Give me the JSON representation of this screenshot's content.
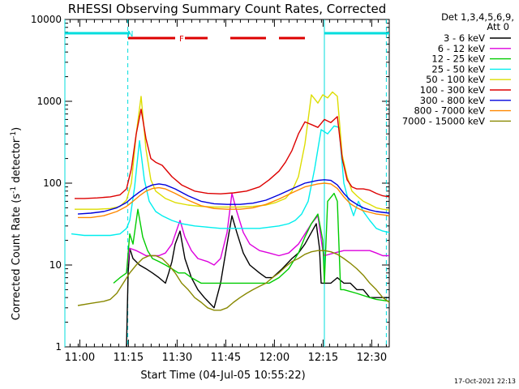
{
  "chart_data": {
    "type": "line",
    "title": "RHESSI Observing Summary Count Rates, Corrected",
    "xlabel": "Start Time (04-Jul-05 10:55:22)",
    "ylabel_main": "Corrected Count Rate (s",
    "ylabel_exp1": "-1",
    "ylabel_mid": " detector",
    "ylabel_exp2": "-1",
    "ylabel_close": ")",
    "footer": "17-Oct-2021 22:13",
    "x_unit": "minutes after 10:55:22",
    "xlim": [
      0,
      100
    ],
    "ylim": [
      1,
      10000
    ],
    "yscale": "log",
    "x_ticks": [
      {
        "label": "11:00",
        "value": 4.6
      },
      {
        "label": "11:15",
        "value": 19.6
      },
      {
        "label": "11:30",
        "value": 34.6
      },
      {
        "label": "11:45",
        "value": 49.6
      },
      {
        "label": "12:00",
        "value": 64.6
      },
      {
        "label": "12:15",
        "value": 79.6
      },
      {
        "label": "12:30",
        "value": 94.6
      }
    ],
    "y_ticks": [
      {
        "label": "1",
        "value": 1
      },
      {
        "label": "10",
        "value": 10
      },
      {
        "label": "100",
        "value": 100
      },
      {
        "label": "1000",
        "value": 1000
      },
      {
        "label": "10000",
        "value": 10000
      }
    ],
    "legend_header": [
      "Det 1,3,4,5,6,9,",
      "Att 0"
    ],
    "legend_placement": "right",
    "series": [
      {
        "name": "3 - 6 keV",
        "color": "#000000",
        "x": [
          0,
          19,
          19.5,
          20,
          21,
          23,
          25,
          27,
          29,
          31,
          32,
          33,
          34,
          35.5,
          37,
          39,
          41,
          43,
          46,
          48,
          50,
          51.5,
          53,
          55,
          57,
          60,
          62,
          64,
          67,
          70,
          72,
          74,
          76,
          77.5,
          78.5,
          79,
          80,
          82,
          84,
          86,
          88,
          90,
          92,
          94,
          96,
          98,
          100
        ],
        "y": [
          null,
          1,
          8,
          16,
          12,
          10,
          9,
          8,
          7,
          6,
          8,
          11,
          18,
          26,
          12,
          7,
          5,
          4,
          3,
          6,
          18,
          40,
          25,
          14,
          10,
          8,
          7,
          7,
          9,
          12,
          14,
          18,
          25,
          32,
          16,
          6,
          6,
          6,
          7,
          6,
          6,
          5,
          5,
          4,
          4,
          4,
          4
        ]
      },
      {
        "name": "6 - 12 keV",
        "color": "#dd00dd",
        "x": [
          0,
          19,
          20,
          22,
          23.5,
          25,
          27,
          29,
          31,
          33,
          35.5,
          37,
          39,
          41,
          44,
          46,
          48,
          50,
          51.5,
          53,
          55,
          57,
          60,
          63,
          66,
          69,
          72,
          74,
          76,
          78,
          79.5,
          80,
          83,
          86,
          89,
          92,
          94,
          96,
          98,
          100
        ],
        "y": [
          null,
          8,
          16,
          15,
          14,
          13,
          13,
          13,
          14,
          18,
          35,
          22,
          15,
          12,
          11,
          10,
          12,
          25,
          75,
          45,
          25,
          18,
          15,
          14,
          13,
          14,
          18,
          24,
          32,
          40,
          15,
          13,
          14,
          15,
          15,
          15,
          15,
          14,
          13,
          13
        ]
      },
      {
        "name": "12 - 25 keV",
        "color": "#00cc00",
        "x": [
          0,
          15,
          17,
          19,
          20,
          21,
          22.5,
          24,
          25.5,
          27,
          29,
          31,
          33,
          35,
          37,
          39,
          42,
          45,
          48,
          50,
          52,
          54,
          57,
          60,
          63,
          66,
          69,
          72,
          74,
          76,
          78,
          79.5,
          80,
          81,
          83,
          84,
          85,
          86,
          90,
          94,
          96,
          98,
          100
        ],
        "y": [
          null,
          6,
          7,
          8,
          24,
          18,
          48,
          22,
          15,
          12,
          11,
          10,
          9,
          8,
          8,
          7,
          6,
          6,
          6,
          6,
          6,
          6,
          6,
          6,
          6,
          7,
          9,
          14,
          22,
          32,
          42,
          20,
          6,
          60,
          75,
          60,
          5,
          5,
          4.5,
          4,
          3.8,
          3.7,
          3.6
        ]
      },
      {
        "name": "25 - 50 keV",
        "color": "#00eeee",
        "x": [
          0,
          2,
          6,
          10,
          14,
          17,
          19,
          20,
          21.5,
          23,
          24.5,
          26,
          28,
          30,
          33,
          36,
          40,
          44,
          48,
          52,
          56,
          60,
          63,
          66,
          69,
          71,
          73,
          75,
          77,
          79,
          81,
          83,
          84.5,
          86,
          87.5,
          89,
          90.5,
          92,
          94,
          96,
          98,
          100
        ],
        "y": [
          null,
          24,
          23,
          23,
          23,
          24,
          28,
          35,
          90,
          330,
          110,
          60,
          45,
          40,
          35,
          32,
          30,
          29,
          28,
          28,
          28,
          28,
          29,
          30,
          32,
          35,
          42,
          60,
          150,
          450,
          400,
          500,
          480,
          100,
          60,
          40,
          60,
          45,
          35,
          28,
          26,
          25
        ]
      },
      {
        "name": "50 - 100 keV",
        "color": "#dddd00",
        "x": [
          0,
          3,
          6,
          10,
          14,
          17,
          19,
          20.5,
          22,
          23.5,
          25,
          26.5,
          28,
          31,
          34,
          38,
          42,
          46,
          50,
          54,
          58,
          62,
          65,
          68,
          70,
          72,
          74,
          76,
          78,
          79.5,
          81,
          82.5,
          84,
          85.5,
          87,
          88.5,
          90,
          92,
          94,
          96,
          98,
          100
        ],
        "y": [
          null,
          48,
          48,
          48,
          49,
          52,
          62,
          100,
          400,
          1150,
          260,
          110,
          80,
          65,
          58,
          54,
          52,
          51,
          51,
          51,
          52,
          54,
          58,
          65,
          80,
          120,
          300,
          1200,
          950,
          1200,
          1100,
          1300,
          1150,
          220,
          120,
          80,
          70,
          60,
          55,
          50,
          48,
          47
        ]
      },
      {
        "name": "100 - 300 keV",
        "color": "#dd0000",
        "x": [
          0,
          3,
          6,
          10,
          14,
          17,
          19,
          20.5,
          22,
          23.5,
          25,
          26.5,
          28,
          30,
          33,
          36,
          40,
          44,
          48,
          52,
          56,
          60,
          63,
          66,
          68,
          70,
          72,
          74,
          76,
          78,
          80,
          82,
          84,
          85.5,
          87,
          88.5,
          90,
          92,
          94,
          96,
          98,
          100
        ],
        "y": [
          null,
          65,
          65,
          66,
          68,
          72,
          85,
          150,
          400,
          800,
          350,
          200,
          180,
          165,
          120,
          95,
          80,
          75,
          74,
          76,
          80,
          90,
          110,
          140,
          180,
          250,
          400,
          560,
          520,
          480,
          600,
          550,
          650,
          200,
          110,
          90,
          85,
          85,
          82,
          75,
          70,
          68
        ]
      },
      {
        "name": "300 - 800 keV",
        "color": "#0000dd",
        "x": [
          0,
          4,
          8,
          12,
          16,
          19,
          21,
          23,
          25,
          27,
          29,
          31,
          34,
          38,
          42,
          46,
          50,
          54,
          58,
          62,
          66,
          70,
          74,
          78,
          80,
          82,
          84,
          86,
          88,
          90,
          92,
          94,
          96,
          98,
          100
        ],
        "y": [
          null,
          42,
          43,
          45,
          50,
          58,
          68,
          78,
          88,
          95,
          98,
          95,
          85,
          70,
          60,
          56,
          55,
          55,
          57,
          62,
          72,
          85,
          100,
          108,
          110,
          108,
          95,
          75,
          62,
          55,
          50,
          47,
          45,
          44,
          43
        ]
      },
      {
        "name": "800 - 7000 keV",
        "color": "#ff8800",
        "x": [
          0,
          4,
          8,
          12,
          16,
          19,
          21,
          23,
          25,
          27,
          29,
          31,
          34,
          38,
          42,
          46,
          50,
          54,
          58,
          62,
          66,
          70,
          74,
          78,
          80,
          82,
          84,
          86,
          88,
          90,
          92,
          94,
          96,
          98,
          100
        ],
        "y": [
          null,
          38,
          38,
          40,
          45,
          52,
          60,
          70,
          80,
          86,
          88,
          85,
          75,
          62,
          53,
          49,
          48,
          48,
          50,
          55,
          64,
          76,
          90,
          98,
          100,
          98,
          86,
          68,
          56,
          50,
          46,
          44,
          42,
          41,
          40
        ]
      },
      {
        "name": "7000 - 15000 keV",
        "color": "#888800",
        "x": [
          0,
          4,
          8,
          12,
          14,
          16,
          18,
          20,
          22,
          24,
          26,
          28,
          30,
          32,
          34,
          36,
          38,
          40,
          42,
          44,
          46,
          48,
          50,
          52,
          54,
          56,
          58,
          60,
          62,
          64,
          66,
          68,
          70,
          72,
          74,
          76,
          78,
          80,
          82,
          84,
          86,
          88,
          90,
          92,
          94,
          96,
          98,
          100
        ],
        "y": [
          null,
          3.2,
          3.4,
          3.6,
          3.8,
          4.5,
          6,
          8,
          10,
          12,
          13,
          13,
          12,
          10,
          8,
          6,
          5,
          4,
          3.5,
          3,
          2.8,
          2.8,
          3,
          3.5,
          4,
          4.5,
          5,
          5.5,
          6,
          7,
          8,
          9.5,
          11,
          12,
          13.5,
          14.5,
          15,
          15,
          14.5,
          13.5,
          12,
          10.5,
          9,
          7.5,
          6,
          5,
          4,
          3.5
        ]
      }
    ],
    "state_bars": [
      {
        "label": "N",
        "color": "#00dddd",
        "segments": [
          [
            0,
            20
          ],
          [
            80,
            100
          ]
        ]
      },
      {
        "label": "F",
        "color": "#dd0000",
        "segments": [
          [
            19.5,
            34
          ],
          [
            37,
            44
          ],
          [
            51,
            62
          ],
          [
            66,
            74
          ]
        ]
      }
    ],
    "state_lines": {
      "color": "#00dddd",
      "x": [
        19.4,
        80.0,
        99.1
      ]
    },
    "state_line_styles": [
      "dashed",
      "solid",
      "dashed"
    ]
  }
}
